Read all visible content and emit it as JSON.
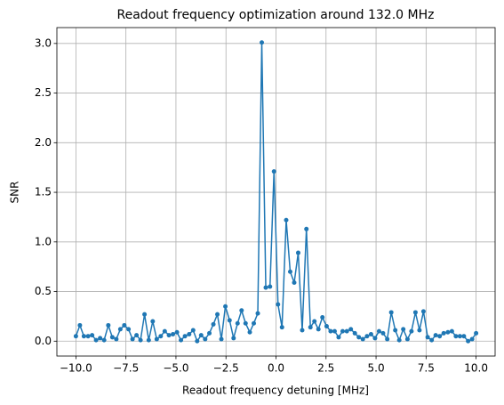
{
  "chart_data": {
    "type": "line",
    "title": "Readout frequency optimization around 132.0 MHz",
    "x_label": "Readout frequency detuning [MHz]",
    "y_label": "SNR",
    "x": [
      -10,
      -9.8,
      -9.6,
      -9.39,
      -9.19,
      -8.99,
      -8.79,
      -8.59,
      -8.38,
      -8.18,
      -7.98,
      -7.78,
      -7.58,
      -7.37,
      -7.17,
      -6.97,
      -6.77,
      -6.57,
      -6.36,
      -6.16,
      -5.96,
      -5.76,
      -5.56,
      -5.35,
      -5.15,
      -4.95,
      -4.75,
      -4.55,
      -4.34,
      -4.14,
      -3.94,
      -3.74,
      -3.54,
      -3.33,
      -3.13,
      -2.93,
      -2.73,
      -2.53,
      -2.32,
      -2.12,
      -1.92,
      -1.72,
      -1.52,
      -1.31,
      -1.11,
      -0.91,
      -0.71,
      -0.51,
      -0.3,
      -0.1,
      0.1,
      0.3,
      0.51,
      0.71,
      0.91,
      1.11,
      1.31,
      1.52,
      1.72,
      1.92,
      2.12,
      2.32,
      2.53,
      2.73,
      2.93,
      3.13,
      3.33,
      3.54,
      3.74,
      3.94,
      4.14,
      4.34,
      4.55,
      4.75,
      4.95,
      5.15,
      5.35,
      5.56,
      5.76,
      5.96,
      6.16,
      6.36,
      6.57,
      6.77,
      6.97,
      7.17,
      7.37,
      7.58,
      7.78,
      7.98,
      8.18,
      8.38,
      8.59,
      8.79,
      8.99,
      9.19,
      9.39,
      9.6,
      9.8,
      10
    ],
    "series": [
      {
        "color": "#1f77b4",
        "values": [
          0.05,
          0.16,
          0.05,
          0.05,
          0.06,
          0.01,
          0.03,
          0.01,
          0.16,
          0.04,
          0.02,
          0.12,
          0.16,
          0.12,
          0.02,
          0.06,
          0.01,
          0.27,
          0.01,
          0.2,
          0.02,
          0.05,
          0.1,
          0.06,
          0.07,
          0.09,
          0.01,
          0.05,
          0.07,
          0.11,
          0.0,
          0.06,
          0.02,
          0.08,
          0.17,
          0.27,
          0.02,
          0.35,
          0.21,
          0.03,
          0.18,
          0.31,
          0.18,
          0.09,
          0.18,
          0.28,
          3.01,
          0.54,
          0.55,
          1.71,
          0.37,
          0.14,
          1.22,
          0.7,
          0.59,
          0.89,
          0.11,
          1.13,
          0.14,
          0.2,
          0.12,
          0.24,
          0.15,
          0.1,
          0.1,
          0.04,
          0.1,
          0.1,
          0.12,
          0.08,
          0.04,
          0.02,
          0.05,
          0.07,
          0.03,
          0.1,
          0.08,
          0.02,
          0.29,
          0.11,
          0.01,
          0.12,
          0.02,
          0.1,
          0.29,
          0.11,
          0.3,
          0.04,
          0.01,
          0.06,
          0.05,
          0.08,
          0.09,
          0.1,
          0.05,
          0.05,
          0.05,
          0.0,
          0.02,
          0.08
        ]
      }
    ],
    "xlim": [
      -10.95,
      10.95
    ],
    "ylim": [
      -0.15,
      3.16
    ],
    "xticks": [
      {
        "value": -10,
        "label": "−10.0"
      },
      {
        "value": -7.5,
        "label": "−7.5"
      },
      {
        "value": -5,
        "label": "−5.0"
      },
      {
        "value": -2.5,
        "label": "−2.5"
      },
      {
        "value": 0,
        "label": "0.0"
      },
      2.5,
      {
        "value": 5,
        "label": "5.0"
      },
      7.5,
      {
        "value": 10,
        "label": "10.0"
      }
    ],
    "yticks": [
      {
        "value": 0,
        "label": "0.0"
      },
      0.5,
      {
        "value": 1,
        "label": "1.0"
      },
      1.5,
      {
        "value": 2,
        "label": "2.0"
      },
      2.5,
      {
        "value": 3,
        "label": "3.0"
      }
    ],
    "grid": true
  }
}
